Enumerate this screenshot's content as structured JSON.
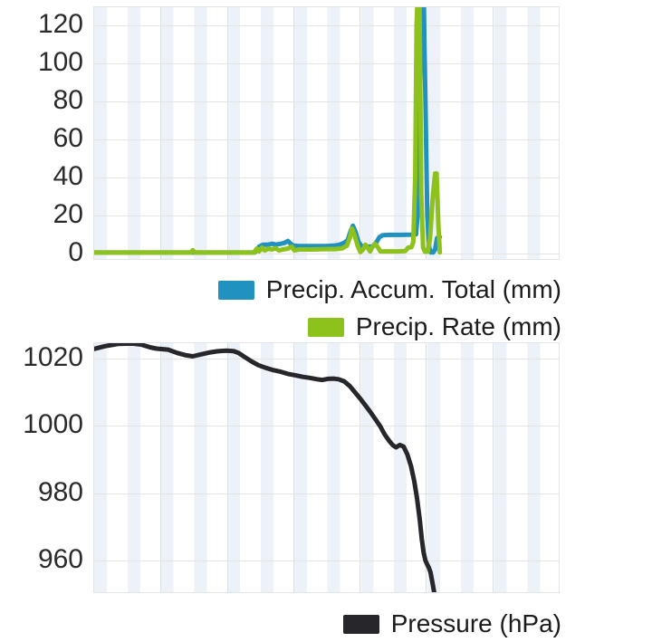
{
  "page": {
    "background": "#ffffff",
    "grid_stripe_color": "#edf2f9",
    "gridline_color": "#e4e4e4"
  },
  "chart_data": [
    {
      "type": "line",
      "title": "",
      "xlabel": "",
      "ylabel": "",
      "x_unit": "percent_of_plot_width",
      "x_major_divisions": 7,
      "grid": true,
      "legend_position": "below-right",
      "ylim": [
        -3,
        129.5
      ],
      "yticks": [
        0,
        20,
        40,
        60,
        80,
        100,
        120
      ],
      "series": [
        {
          "name": "Precip. Accum. Total (mm)",
          "color": "#2191c0",
          "points": [
            [
              0,
              0.4
            ],
            [
              20,
              0.4
            ],
            [
              30,
              0.4
            ],
            [
              34.5,
              0.4
            ],
            [
              35,
              1.5
            ],
            [
              35.5,
              3.5
            ],
            [
              36.3,
              4.5
            ],
            [
              37.3,
              4.5
            ],
            [
              38.3,
              5
            ],
            [
              39.2,
              4.6
            ],
            [
              40.2,
              5
            ],
            [
              41,
              5.5
            ],
            [
              41.7,
              6.5
            ],
            [
              42.3,
              5
            ],
            [
              42.9,
              4
            ],
            [
              44,
              3.8
            ],
            [
              47,
              3.8
            ],
            [
              50,
              3.8
            ],
            [
              51.5,
              4
            ],
            [
              52.8,
              4.5
            ],
            [
              53.8,
              5.5
            ],
            [
              54.6,
              7
            ],
            [
              55.1,
              11
            ],
            [
              55.7,
              14.5
            ],
            [
              56.3,
              11
            ],
            [
              56.9,
              6
            ],
            [
              57.5,
              4
            ],
            [
              58.3,
              3.5
            ],
            [
              60,
              3.5
            ],
            [
              60.8,
              6
            ],
            [
              61.4,
              8.5
            ],
            [
              62.1,
              9.5
            ],
            [
              63.5,
              9.7
            ],
            [
              66,
              9.7
            ],
            [
              68.5,
              9.8
            ],
            [
              69.3,
              10
            ],
            [
              69.9,
              30
            ],
            [
              70.3,
              110
            ],
            [
              70.6,
              140
            ],
            [
              70.9,
              140
            ],
            [
              71.3,
              80
            ],
            [
              71.7,
              20
            ],
            [
              72.1,
              3
            ],
            [
              72.5,
              0.5
            ],
            [
              73,
              0.5
            ],
            [
              73.4,
              2
            ],
            [
              73.8,
              8
            ],
            [
              74.4,
              8.5
            ]
          ]
        },
        {
          "name": "Precip. Rate (mm)",
          "color": "#8dc21c",
          "points": [
            [
              0,
              0.4
            ],
            [
              20.8,
              0.4
            ],
            [
              21.2,
              1.6
            ],
            [
              21.7,
              0.4
            ],
            [
              34.4,
              0.4
            ],
            [
              35,
              2.5
            ],
            [
              35.5,
              1
            ],
            [
              36.1,
              3
            ],
            [
              36.7,
              1.5
            ],
            [
              37.5,
              2.5
            ],
            [
              38.3,
              2
            ],
            [
              39,
              2.7
            ],
            [
              39.8,
              1.5
            ],
            [
              40.6,
              2
            ],
            [
              41.7,
              2.5
            ],
            [
              42.5,
              3.5
            ],
            [
              43.1,
              1.5
            ],
            [
              44.1,
              2
            ],
            [
              47,
              2
            ],
            [
              50,
              2.2
            ],
            [
              51.8,
              2.2
            ],
            [
              53.4,
              2.6
            ],
            [
              54.4,
              4
            ],
            [
              55,
              8
            ],
            [
              55.5,
              13
            ],
            [
              56.1,
              9
            ],
            [
              56.7,
              4
            ],
            [
              57.3,
              0.6
            ],
            [
              57.9,
              2
            ],
            [
              58.4,
              4.5
            ],
            [
              59,
              2.5
            ],
            [
              59.4,
              1
            ],
            [
              59.8,
              3
            ],
            [
              60.4,
              5
            ],
            [
              61,
              3.5
            ],
            [
              61.6,
              1
            ],
            [
              63.5,
              1
            ],
            [
              65.4,
              1
            ],
            [
              67,
              1.2
            ],
            [
              67.6,
              3
            ],
            [
              68.3,
              3.2
            ],
            [
              68.7,
              6
            ],
            [
              69.1,
              40
            ],
            [
              69.4,
              120
            ],
            [
              69.7,
              140
            ],
            [
              70,
              140
            ],
            [
              70.4,
              30
            ],
            [
              70.8,
              3
            ],
            [
              71.2,
              0.8
            ],
            [
              71.8,
              0.8
            ],
            [
              72.3,
              8
            ],
            [
              72.9,
              30
            ],
            [
              73.4,
              42
            ],
            [
              73.7,
              42
            ],
            [
              74.1,
              15
            ],
            [
              74.4,
              0.5
            ]
          ]
        }
      ]
    },
    {
      "type": "line",
      "title": "",
      "xlabel": "",
      "ylabel": "",
      "x_unit": "percent_of_plot_width",
      "x_major_divisions": 7,
      "grid": true,
      "legend_position": "below-right",
      "ylim": [
        950.6,
        1024.5
      ],
      "yticks": [
        960,
        980,
        1000,
        1020
      ],
      "series": [
        {
          "name": "Pressure (hPa)",
          "color": "#26262b",
          "points": [
            [
              0,
              1022.8
            ],
            [
              2.3,
              1023.6
            ],
            [
              5.2,
              1024.3
            ],
            [
              8.2,
              1024.4
            ],
            [
              10.1,
              1024.1
            ],
            [
              12,
              1023.3
            ],
            [
              13.4,
              1022.9
            ],
            [
              15.9,
              1022.6
            ],
            [
              17.9,
              1021.6
            ],
            [
              19.8,
              1020.9
            ],
            [
              21.2,
              1020.6
            ],
            [
              22.7,
              1021.1
            ],
            [
              24.7,
              1021.7
            ],
            [
              26.6,
              1022.1
            ],
            [
              28.5,
              1022.3
            ],
            [
              30.1,
              1022.1
            ],
            [
              31.1,
              1021.6
            ],
            [
              32.4,
              1020.4
            ],
            [
              34,
              1019
            ],
            [
              35.3,
              1018
            ],
            [
              36.9,
              1017.2
            ],
            [
              38.3,
              1016.6
            ],
            [
              40.2,
              1016
            ],
            [
              41.7,
              1015.4
            ],
            [
              43.3,
              1015
            ],
            [
              44.9,
              1014.5
            ],
            [
              46.4,
              1014.2
            ],
            [
              48,
              1013.8
            ],
            [
              49.1,
              1013.6
            ],
            [
              50.3,
              1013.9
            ],
            [
              51.5,
              1014
            ],
            [
              52.6,
              1013.8
            ],
            [
              53.8,
              1013.2
            ],
            [
              55,
              1011.8
            ],
            [
              56.1,
              1010
            ],
            [
              57.3,
              1008
            ],
            [
              58.4,
              1006
            ],
            [
              59.6,
              1003.8
            ],
            [
              60.6,
              1001.8
            ],
            [
              61.6,
              999.8
            ],
            [
              62.5,
              997.5
            ],
            [
              63.5,
              995.5
            ],
            [
              64.3,
              994.2
            ],
            [
              65,
              993.6
            ],
            [
              65.8,
              994.3
            ],
            [
              66.6,
              993.8
            ],
            [
              67.4,
              991.5
            ],
            [
              68.2,
              988
            ],
            [
              68.9,
              983.5
            ],
            [
              69.5,
              978.5
            ],
            [
              70.1,
              972
            ],
            [
              70.5,
              966.5
            ],
            [
              70.9,
              962.5
            ],
            [
              71.3,
              960
            ],
            [
              71.7,
              958.8
            ],
            [
              72,
              958
            ],
            [
              72.4,
              956.5
            ],
            [
              72.8,
              953.5
            ],
            [
              73.2,
              950.5
            ],
            [
              73.5,
              948.5
            ]
          ]
        }
      ]
    }
  ]
}
